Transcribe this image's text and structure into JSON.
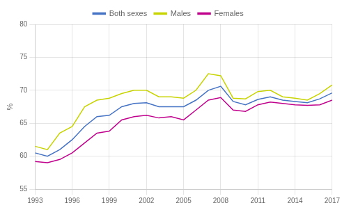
{
  "chart_data": {
    "type": "line",
    "ylabel": "%",
    "x": [
      1993,
      1994,
      1995,
      1996,
      1997,
      1998,
      1999,
      2000,
      2001,
      2002,
      2003,
      2004,
      2005,
      2006,
      2007,
      2008,
      2009,
      2010,
      2011,
      2012,
      2013,
      2014,
      2015,
      2016,
      2017
    ],
    "series": [
      {
        "name": "Both sexes",
        "color": "#4472C4",
        "values": [
          60.5,
          60.0,
          61.0,
          62.5,
          64.5,
          66.0,
          66.2,
          67.5,
          68.0,
          68.1,
          67.5,
          67.5,
          67.5,
          68.5,
          70.0,
          70.6,
          68.3,
          67.8,
          68.6,
          69.0,
          68.5,
          68.3,
          68.1,
          68.7,
          69.6
        ]
      },
      {
        "name": "Males",
        "color": "#C8D400",
        "values": [
          61.5,
          61.0,
          63.5,
          64.5,
          67.5,
          68.5,
          68.8,
          69.5,
          70.0,
          70.0,
          69.0,
          69.0,
          68.8,
          70.0,
          72.5,
          72.2,
          68.8,
          68.7,
          69.8,
          70.0,
          69.0,
          68.8,
          68.5,
          69.5,
          70.8
        ]
      },
      {
        "name": "Females",
        "color": "#C0008C",
        "values": [
          59.2,
          59.0,
          59.5,
          60.5,
          62.0,
          63.5,
          63.8,
          65.5,
          66.0,
          66.2,
          65.8,
          66.0,
          65.5,
          67.0,
          68.5,
          68.9,
          67.0,
          66.8,
          67.8,
          68.2,
          68.0,
          67.8,
          67.7,
          67.8,
          68.5
        ]
      }
    ],
    "xlim": [
      1993,
      2017
    ],
    "xticks": [
      1993,
      1996,
      1999,
      2002,
      2005,
      2008,
      2011,
      2014,
      2017
    ],
    "ylim": [
      55,
      80
    ],
    "yticks": [
      55,
      60,
      65,
      70,
      75,
      80
    ],
    "grid": true,
    "legend": "top"
  }
}
